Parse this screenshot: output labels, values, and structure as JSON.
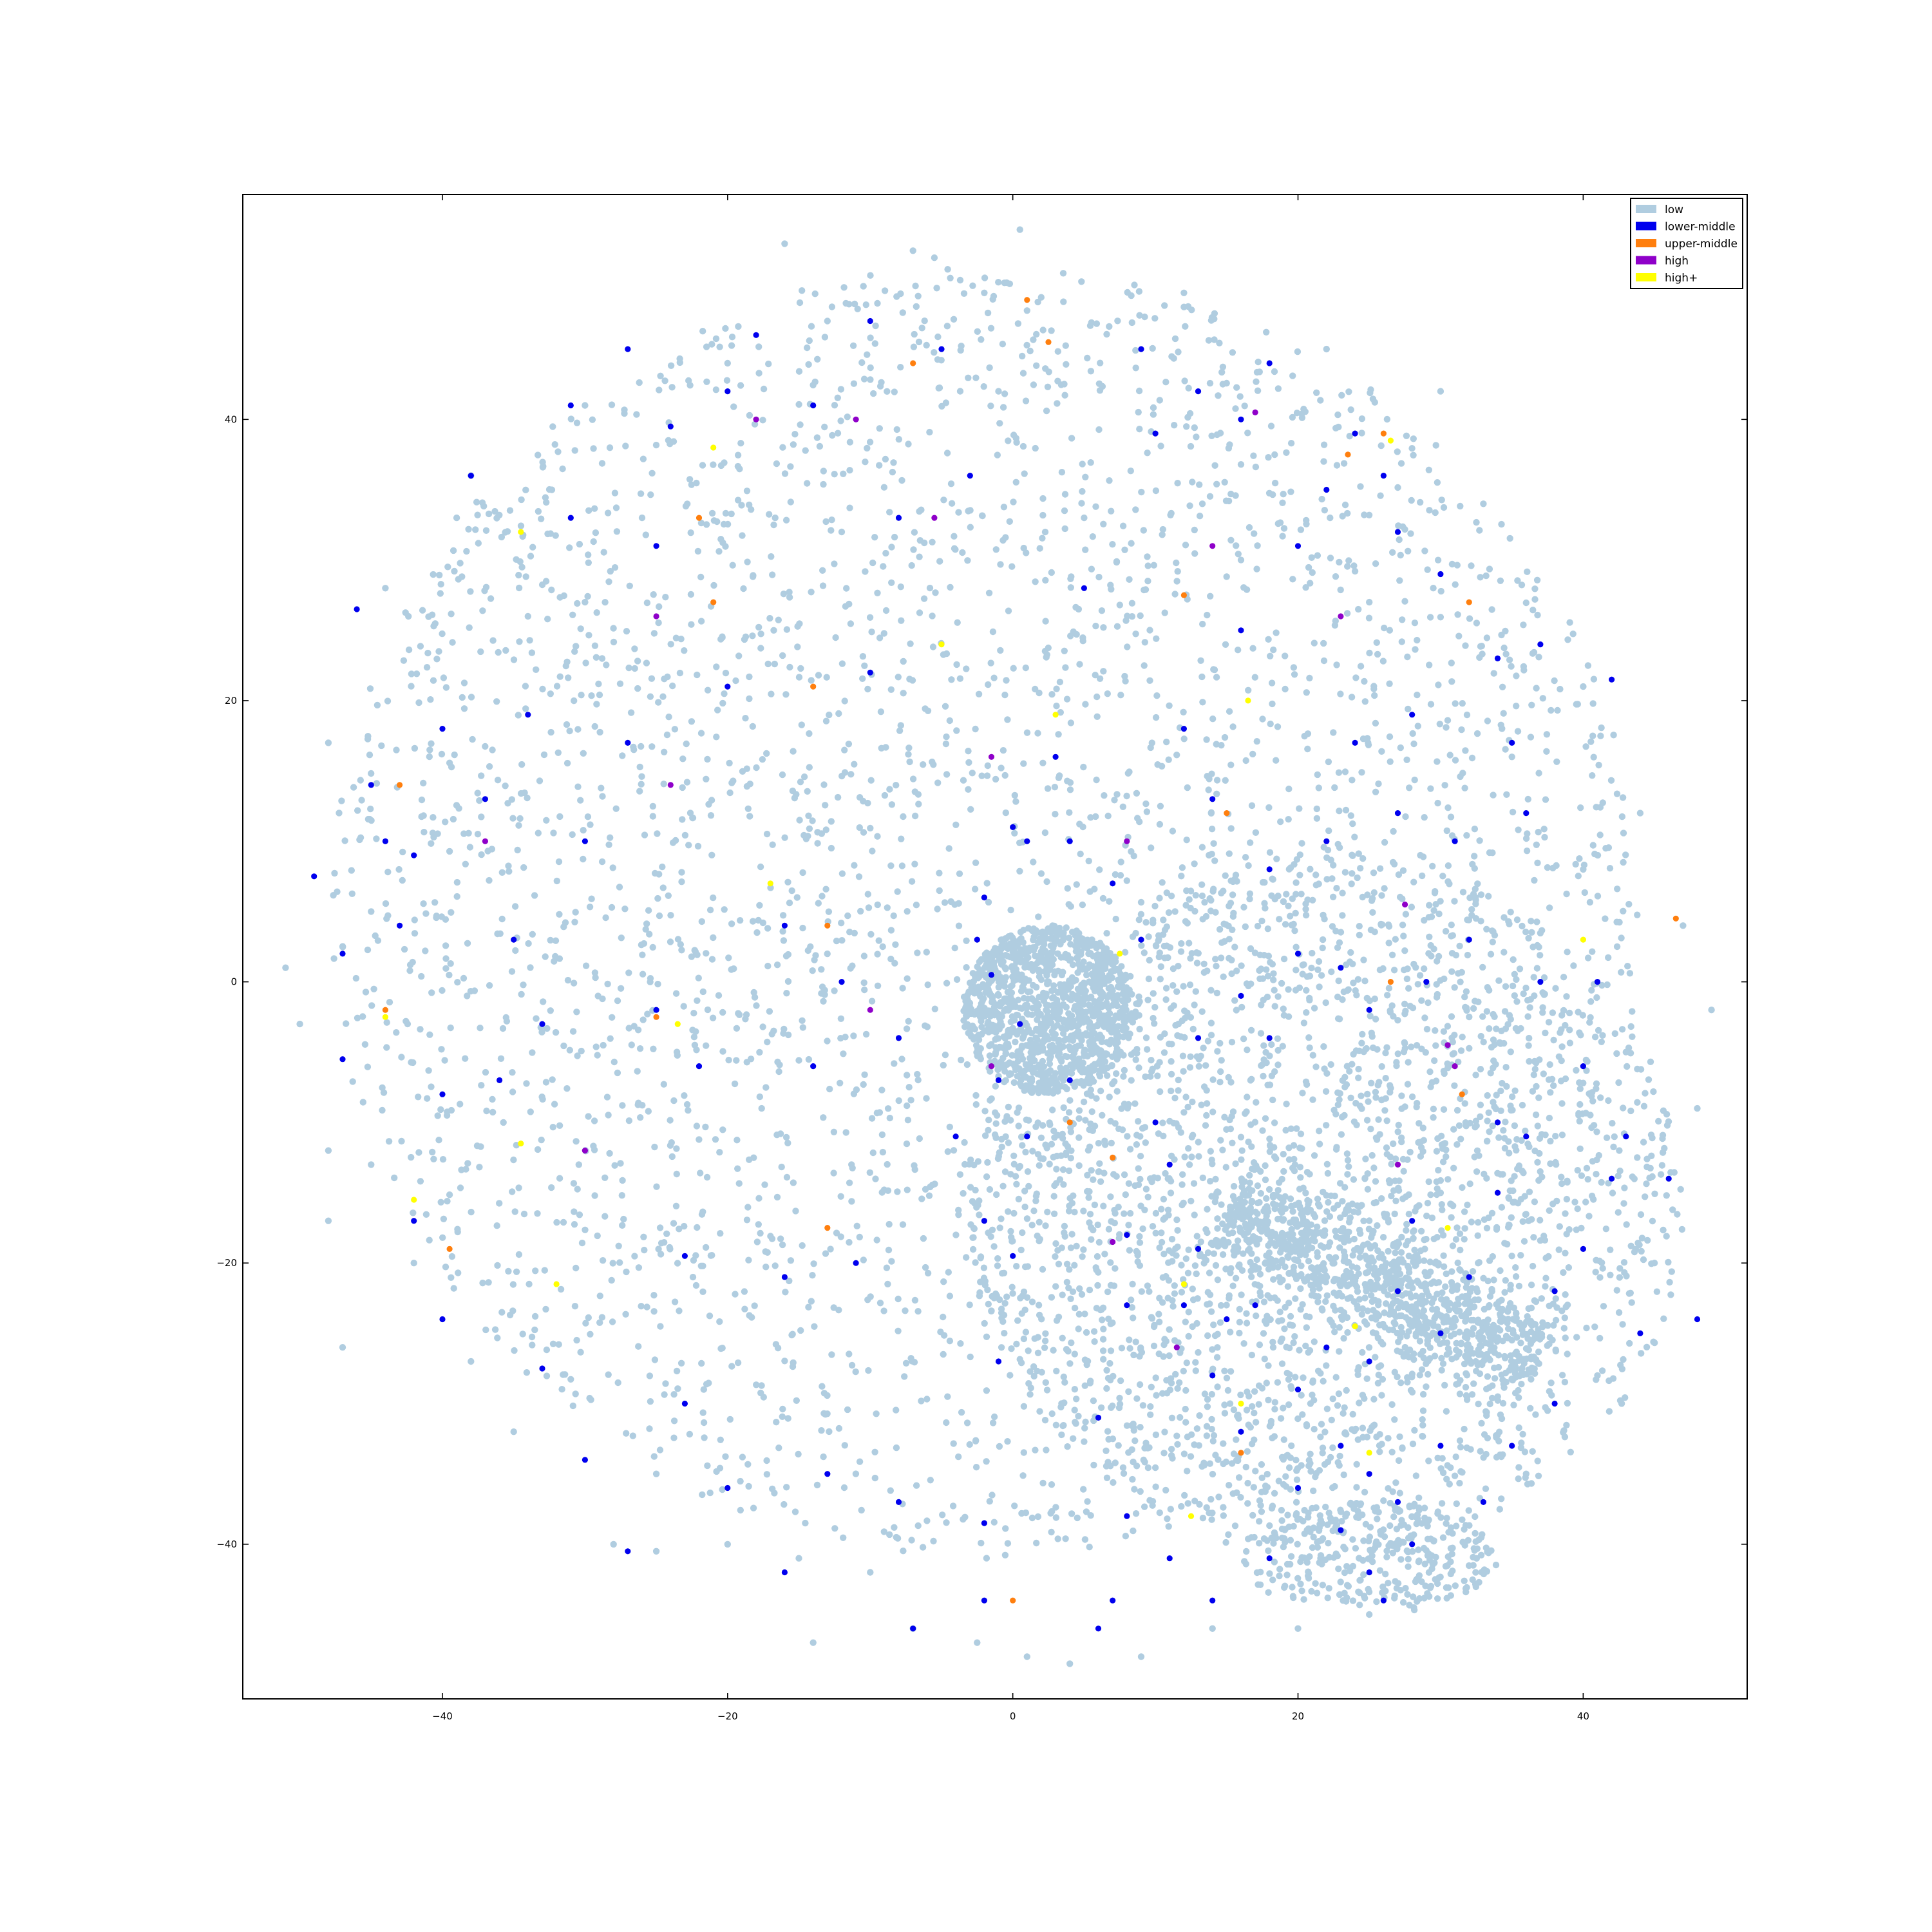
{
  "chart_data": {
    "type": "scatter",
    "title": "",
    "xlabel": "",
    "ylabel": "",
    "xlim": [
      -54,
      51.5
    ],
    "ylim": [
      -51,
      56
    ],
    "xticks": [
      -40,
      -20,
      0,
      20,
      40
    ],
    "yticks": [
      -40,
      -20,
      0,
      20,
      40
    ],
    "xtick_labels": [
      "−40",
      "−20",
      "0",
      "20",
      "40"
    ],
    "ytick_labels": [
      "−40",
      "−20",
      "0",
      "20",
      "40"
    ],
    "grid": false,
    "legend_position": "top-right",
    "series": [
      {
        "name": "low",
        "color": "#b0cde0",
        "clusters": [
          {
            "shape": "disk",
            "center": [
              -2,
              5
            ],
            "radius": 46,
            "count": 3400
          },
          {
            "shape": "disk",
            "center": [
              2.5,
              -2
            ],
            "radius": 6,
            "count": 1100
          },
          {
            "shape": "disk",
            "center": [
              22,
              -16
            ],
            "radius": 25,
            "count": 2000
          },
          {
            "shape": "band",
            "from": [
              15,
              -16
            ],
            "to": [
              37,
              -27
            ],
            "width": 4,
            "count": 900
          },
          {
            "shape": "ellipse",
            "center": [
              25,
              -41
            ],
            "radius": [
              9,
              4
            ],
            "count": 320
          }
        ],
        "points": [
          [
            0.5,
            53.5
          ],
          [
            -7,
            52
          ],
          [
            -5.5,
            51.5
          ],
          [
            -16,
            52.5
          ],
          [
            -2,
            49
          ],
          [
            12,
            48
          ],
          [
            -45,
            5
          ],
          [
            -51,
            1
          ],
          [
            -50,
            -3
          ],
          [
            -48,
            -12
          ],
          [
            -45,
            -13
          ],
          [
            -48,
            -17
          ],
          [
            -42,
            -20
          ],
          [
            -47,
            -26
          ],
          [
            -38,
            -27
          ],
          [
            -35,
            -32
          ],
          [
            -25,
            -35
          ],
          [
            -28,
            -40
          ],
          [
            -25,
            -40.5
          ],
          [
            -20,
            -40
          ],
          [
            -15,
            -41
          ],
          [
            -10,
            -42
          ],
          [
            -7,
            -46
          ],
          [
            -14,
            -47
          ],
          [
            -2.5,
            -47
          ],
          [
            1,
            -48
          ],
          [
            4,
            -48.5
          ],
          [
            9,
            -48
          ],
          [
            14,
            -46
          ],
          [
            20,
            -46
          ],
          [
            25,
            -45
          ],
          [
            36,
            -35
          ],
          [
            41,
            -28
          ],
          [
            45,
            -20
          ],
          [
            48,
            -9
          ],
          [
            49,
            -2
          ],
          [
            47,
            4
          ],
          [
            44,
            12
          ],
          [
            40,
            21
          ],
          [
            33,
            34
          ],
          [
            30,
            42
          ],
          [
            22,
            45
          ],
          [
            12,
            49
          ],
          [
            -1,
            42
          ],
          [
            -13,
            47
          ],
          [
            -20,
            44
          ],
          [
            -30,
            41
          ],
          [
            -38,
            36
          ],
          [
            -44,
            28
          ],
          [
            -48,
            17
          ],
          [
            -39,
            33
          ],
          [
            -34,
            26
          ],
          [
            -30,
            27
          ],
          [
            -26,
            33
          ],
          [
            -12,
            32
          ],
          [
            5,
            33
          ],
          [
            16,
            30
          ],
          [
            25,
            27
          ],
          [
            35,
            16
          ],
          [
            40,
            8
          ],
          [
            43,
            -5
          ]
        ]
      },
      {
        "name": "lower-middle",
        "color": "#0000ee",
        "points": [
          [
            -46,
            26.5
          ],
          [
            -31,
            33
          ],
          [
            -31,
            41
          ],
          [
            -24,
            39.5
          ],
          [
            -38,
            36
          ],
          [
            -34,
            19
          ],
          [
            -37,
            13
          ],
          [
            -42,
            9
          ],
          [
            -43,
            4
          ],
          [
            -49,
            7.5
          ],
          [
            -47,
            -5.5
          ],
          [
            -40,
            -8
          ],
          [
            -42,
            -17
          ],
          [
            -40,
            -24
          ],
          [
            -33,
            -27.5
          ],
          [
            -30,
            -34
          ],
          [
            -23,
            -19.5
          ],
          [
            -23,
            -30
          ],
          [
            -27,
            -40.5
          ],
          [
            -20,
            -36
          ],
          [
            -16,
            -21
          ],
          [
            -16,
            -42
          ],
          [
            -13,
            -35
          ],
          [
            -11,
            -20
          ],
          [
            -8,
            -37
          ],
          [
            -7,
            -46
          ],
          [
            -2,
            -44
          ],
          [
            -2,
            -38.5
          ],
          [
            -1,
            -27
          ],
          [
            0,
            -19.5
          ],
          [
            -2,
            -17
          ],
          [
            -4,
            -11
          ],
          [
            1,
            -11
          ],
          [
            -1,
            -7
          ],
          [
            0.5,
            -3
          ],
          [
            -2,
            6
          ],
          [
            -2.5,
            3
          ],
          [
            -1.5,
            0.5
          ],
          [
            0,
            11
          ],
          [
            1,
            10
          ],
          [
            3,
            16
          ],
          [
            4,
            -7
          ],
          [
            6,
            -31
          ],
          [
            6,
            -46
          ],
          [
            7,
            -44
          ],
          [
            8,
            -18
          ],
          [
            4,
            10
          ],
          [
            12,
            18
          ],
          [
            14,
            13
          ],
          [
            16,
            25
          ],
          [
            20,
            31
          ],
          [
            22,
            35
          ],
          [
            26,
            36
          ],
          [
            30,
            29
          ],
          [
            34,
            23
          ],
          [
            35,
            17
          ],
          [
            42,
            21.5
          ],
          [
            37,
            24
          ],
          [
            -3,
            36
          ],
          [
            -8,
            33
          ],
          [
            -14,
            41
          ],
          [
            -20,
            42
          ],
          [
            -25,
            31
          ],
          [
            5,
            28
          ],
          [
            -10,
            22
          ],
          [
            -20,
            21
          ],
          [
            -27,
            17
          ],
          [
            -30,
            10
          ],
          [
            -35,
            3
          ],
          [
            -16,
            4
          ],
          [
            -12,
            0
          ],
          [
            -8,
            -4
          ],
          [
            -14,
            -6
          ],
          [
            -22,
            -6
          ],
          [
            -25,
            -2
          ],
          [
            -33,
            -3
          ],
          [
            -36,
            -7
          ],
          [
            13,
            -19
          ],
          [
            15,
            -24
          ],
          [
            14,
            -28
          ],
          [
            16,
            -32
          ],
          [
            20,
            -29
          ],
          [
            22,
            -26
          ],
          [
            23,
            -33
          ],
          [
            25,
            -27
          ],
          [
            27,
            -22
          ],
          [
            28,
            -17
          ],
          [
            30,
            -25
          ],
          [
            32,
            -21
          ],
          [
            34,
            -15
          ],
          [
            36,
            -11
          ],
          [
            38,
            -22
          ],
          [
            40,
            -19
          ],
          [
            42,
            -14
          ],
          [
            38,
            -30
          ],
          [
            35,
            -33
          ],
          [
            30,
            -33
          ],
          [
            25,
            -35
          ],
          [
            20,
            -36
          ],
          [
            18,
            -41
          ],
          [
            14,
            -44
          ],
          [
            23,
            -39
          ],
          [
            25,
            -42
          ],
          [
            26,
            -44
          ],
          [
            28,
            -40
          ],
          [
            27,
            -37
          ],
          [
            33,
            -37
          ],
          [
            34,
            -10
          ],
          [
            40,
            -6
          ],
          [
            43,
            -11
          ],
          [
            46,
            -14
          ],
          [
            48,
            -24
          ],
          [
            44,
            -25
          ],
          [
            13,
            -4
          ],
          [
            16,
            -1
          ],
          [
            18,
            -4
          ],
          [
            20,
            2
          ],
          [
            23,
            1
          ],
          [
            25,
            -2
          ],
          [
            29,
            0
          ],
          [
            32,
            3
          ],
          [
            37,
            0
          ],
          [
            41,
            0
          ],
          [
            9,
            3
          ],
          [
            7,
            7
          ],
          [
            10,
            -10
          ],
          [
            11,
            -13
          ],
          [
            12,
            -23
          ],
          [
            17,
            -23
          ],
          [
            8,
            -23
          ],
          [
            8,
            -38
          ],
          [
            11,
            -41
          ],
          [
            -45,
            14
          ],
          [
            -44,
            10
          ],
          [
            -40,
            18
          ],
          [
            -47,
            2
          ],
          [
            18,
            8
          ],
          [
            22,
            10
          ],
          [
            27,
            12
          ],
          [
            31,
            10
          ],
          [
            36,
            12
          ],
          [
            24,
            17
          ],
          [
            28,
            19
          ],
          [
            10,
            39
          ],
          [
            13,
            42
          ],
          [
            18,
            44
          ],
          [
            9,
            45
          ],
          [
            16,
            40
          ],
          [
            24,
            39
          ],
          [
            27,
            32
          ],
          [
            -5,
            45
          ],
          [
            -10,
            47
          ],
          [
            -18,
            46
          ],
          [
            -27,
            45
          ]
        ]
      },
      {
        "name": "upper-middle",
        "color": "#ff7f0e",
        "points": [
          [
            1,
            48.5
          ],
          [
            2.5,
            45.5
          ],
          [
            -7,
            44
          ],
          [
            -22,
            33
          ],
          [
            -21,
            27
          ],
          [
            -14,
            21
          ],
          [
            -43,
            14
          ],
          [
            -44,
            -2
          ],
          [
            -25,
            -2.5
          ],
          [
            -13,
            4
          ],
          [
            12,
            27.5
          ],
          [
            15,
            12
          ],
          [
            23.5,
            37.5
          ],
          [
            26,
            39
          ],
          [
            32,
            27
          ],
          [
            46.5,
            4.5
          ],
          [
            26.5,
            0
          ],
          [
            31.5,
            -8
          ],
          [
            16,
            -33.5
          ],
          [
            7,
            -12.5
          ],
          [
            -13,
            -17.5
          ],
          [
            -39.5,
            -19
          ],
          [
            0,
            -44
          ],
          [
            4,
            -10
          ]
        ]
      },
      {
        "name": "high",
        "color": "#8f00c9",
        "points": [
          [
            -5.5,
            33
          ],
          [
            -24,
            14
          ],
          [
            -37,
            10
          ],
          [
            -25,
            26
          ],
          [
            -18,
            40
          ],
          [
            -11,
            40
          ],
          [
            -1.5,
            16
          ],
          [
            14,
            31
          ],
          [
            17,
            40.5
          ],
          [
            23,
            26
          ],
          [
            27.5,
            5.5
          ],
          [
            30.5,
            -4.5
          ],
          [
            7,
            -18.5
          ],
          [
            11.5,
            -26
          ],
          [
            -1.5,
            -6
          ],
          [
            -10,
            -2
          ],
          [
            -30,
            -12
          ],
          [
            8,
            10
          ],
          [
            31,
            -6
          ],
          [
            27,
            -13
          ]
        ]
      },
      {
        "name": "high+",
        "color": "#ffff00",
        "points": [
          [
            -21,
            38
          ],
          [
            26.5,
            38.5
          ],
          [
            -34.5,
            32
          ],
          [
            -44,
            -2.5
          ],
          [
            -34.5,
            -11.5
          ],
          [
            -42,
            -15.5
          ],
          [
            -32,
            -21.5
          ],
          [
            -23.5,
            -3
          ],
          [
            -5,
            24
          ],
          [
            3,
            19
          ],
          [
            16.5,
            20
          ],
          [
            12,
            -21.5
          ],
          [
            16,
            -30
          ],
          [
            24,
            -24.5
          ],
          [
            25,
            -33.5
          ],
          [
            30.5,
            -17.5
          ],
          [
            12.5,
            -38
          ],
          [
            7.5,
            2
          ],
          [
            -17,
            7
          ],
          [
            40,
            3
          ]
        ]
      }
    ]
  }
}
